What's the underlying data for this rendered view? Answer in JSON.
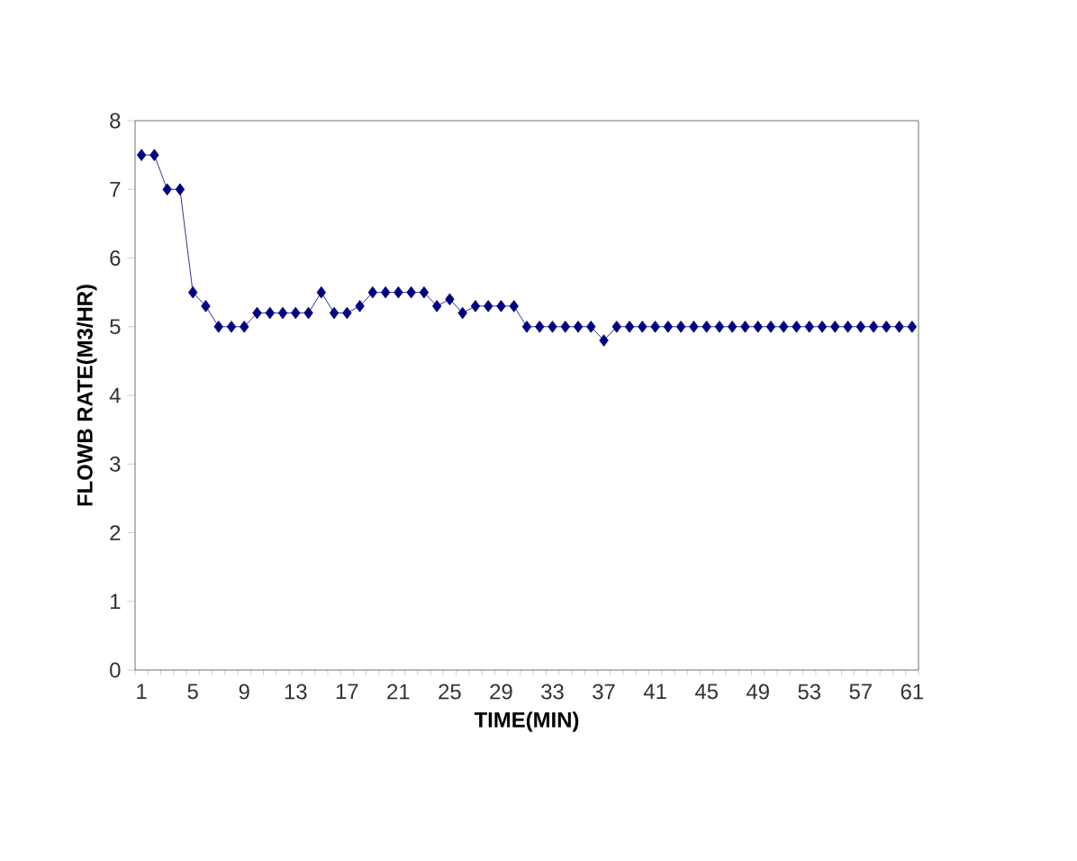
{
  "chart_data": {
    "type": "line",
    "xlabel": "TIME(MIN)",
    "ylabel": "FLOWB RATE(M3/HR)",
    "categories": [
      "1",
      null,
      null,
      null,
      "5",
      null,
      null,
      null,
      "9",
      null,
      null,
      null,
      "13",
      null,
      null,
      null,
      "17",
      null,
      null,
      null,
      "21",
      null,
      null,
      null,
      "25",
      null,
      null,
      null,
      "29",
      null,
      null,
      null,
      "33",
      null,
      null,
      null,
      "37",
      null,
      null,
      null,
      "41",
      null,
      null,
      null,
      "45",
      null,
      null,
      null,
      "49",
      null,
      null,
      null,
      "53",
      null,
      null,
      null,
      "57",
      null,
      null,
      null,
      "61"
    ],
    "series": [
      {
        "color": "#000080",
        "values": [
          7.5,
          7.5,
          7.0,
          7.0,
          5.5,
          5.3,
          5.0,
          5.0,
          5.0,
          5.2,
          5.2,
          5.2,
          5.2,
          5.2,
          5.5,
          5.2,
          5.2,
          5.3,
          5.5,
          5.5,
          5.5,
          5.5,
          5.5,
          5.3,
          5.4,
          5.2,
          5.3,
          5.3,
          5.3,
          5.3,
          5.0,
          5.0,
          5.0,
          5.0,
          5.0,
          5.0,
          4.8,
          5.0,
          5.0,
          5.0,
          5.0,
          5.0,
          5.0,
          5.0,
          5.0,
          5.0,
          5.0,
          5.0,
          5.0,
          5.0,
          5.0,
          5.0,
          5.0,
          5.0,
          5.0,
          5.0,
          5.0,
          5.0,
          5.0,
          5.0,
          5.0
        ]
      }
    ],
    "ylim": [
      0,
      8
    ],
    "yticks": [
      0,
      1,
      2,
      3,
      4,
      5,
      6,
      7,
      8
    ],
    "grid": false,
    "marker": "diamond",
    "line_style": "solid"
  }
}
